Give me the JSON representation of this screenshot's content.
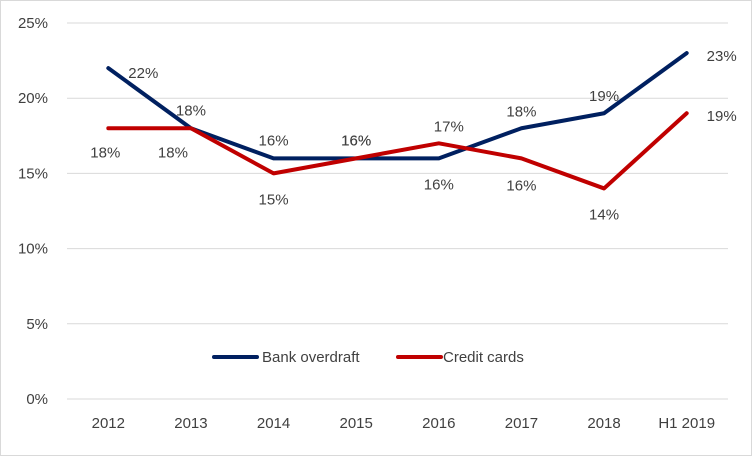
{
  "chart_data": {
    "type": "line",
    "title": "",
    "xlabel": "",
    "ylabel": "",
    "categories": [
      "2012",
      "2013",
      "2014",
      "2015",
      "2016",
      "2017",
      "2018",
      "H1 2019"
    ],
    "ylim": [
      0,
      25
    ],
    "yticks": [
      0,
      5,
      10,
      15,
      20,
      25
    ],
    "ytick_labels": [
      "0%",
      "5%",
      "10%",
      "15%",
      "20%",
      "25%"
    ],
    "grid": true,
    "legend_position": "bottom-center",
    "series": [
      {
        "name": "Bank overdraft",
        "color": "#002060",
        "values": [
          22,
          18,
          16,
          16,
          16,
          18,
          19,
          23
        ],
        "labels": [
          "22%",
          "18%",
          "16%",
          "16%",
          "16%",
          "18%",
          "19%",
          "23%"
        ]
      },
      {
        "name": "Credit cards",
        "color": "#C00000",
        "values": [
          18,
          18,
          15,
          16,
          17,
          16,
          14,
          19
        ],
        "labels": [
          "18%",
          "18%",
          "15%",
          "16%",
          "17%",
          "16%",
          "14%",
          "19%"
        ]
      }
    ]
  }
}
